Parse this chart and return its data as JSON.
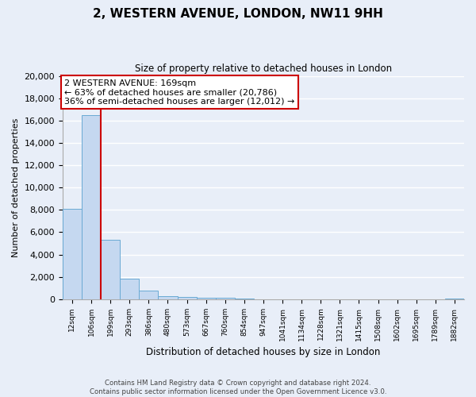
{
  "title": "2, WESTERN AVENUE, LONDON, NW11 9HH",
  "subtitle": "Size of property relative to detached houses in London",
  "bar_labels": [
    "12sqm",
    "106sqm",
    "199sqm",
    "293sqm",
    "386sqm",
    "480sqm",
    "573sqm",
    "667sqm",
    "760sqm",
    "854sqm",
    "947sqm",
    "1041sqm",
    "1134sqm",
    "1228sqm",
    "1321sqm",
    "1415sqm",
    "1508sqm",
    "1602sqm",
    "1695sqm",
    "1789sqm",
    "1882sqm"
  ],
  "bar_values": [
    8100,
    16500,
    5300,
    1850,
    750,
    300,
    200,
    100,
    100,
    50,
    0,
    0,
    0,
    0,
    0,
    0,
    0,
    0,
    0,
    0,
    50
  ],
  "bar_color": "#c5d8f0",
  "bar_edge_color": "#6aaad4",
  "ylabel": "Number of detached properties",
  "xlabel": "Distribution of detached houses by size in London",
  "ylim": [
    0,
    20000
  ],
  "yticks": [
    0,
    2000,
    4000,
    6000,
    8000,
    10000,
    12000,
    14000,
    16000,
    18000,
    20000
  ],
  "vline_x": 1.5,
  "vline_color": "#cc0000",
  "annotation_title": "2 WESTERN AVENUE: 169sqm",
  "annotation_line1": "← 63% of detached houses are smaller (20,786)",
  "annotation_line2": "36% of semi-detached houses are larger (12,012) →",
  "annotation_box_color": "#ffffff",
  "annotation_box_edge": "#cc0000",
  "footer1": "Contains HM Land Registry data © Crown copyright and database right 2024.",
  "footer2": "Contains public sector information licensed under the Open Government Licence v3.0.",
  "background_color": "#e8eef8",
  "grid_color": "#ffffff"
}
